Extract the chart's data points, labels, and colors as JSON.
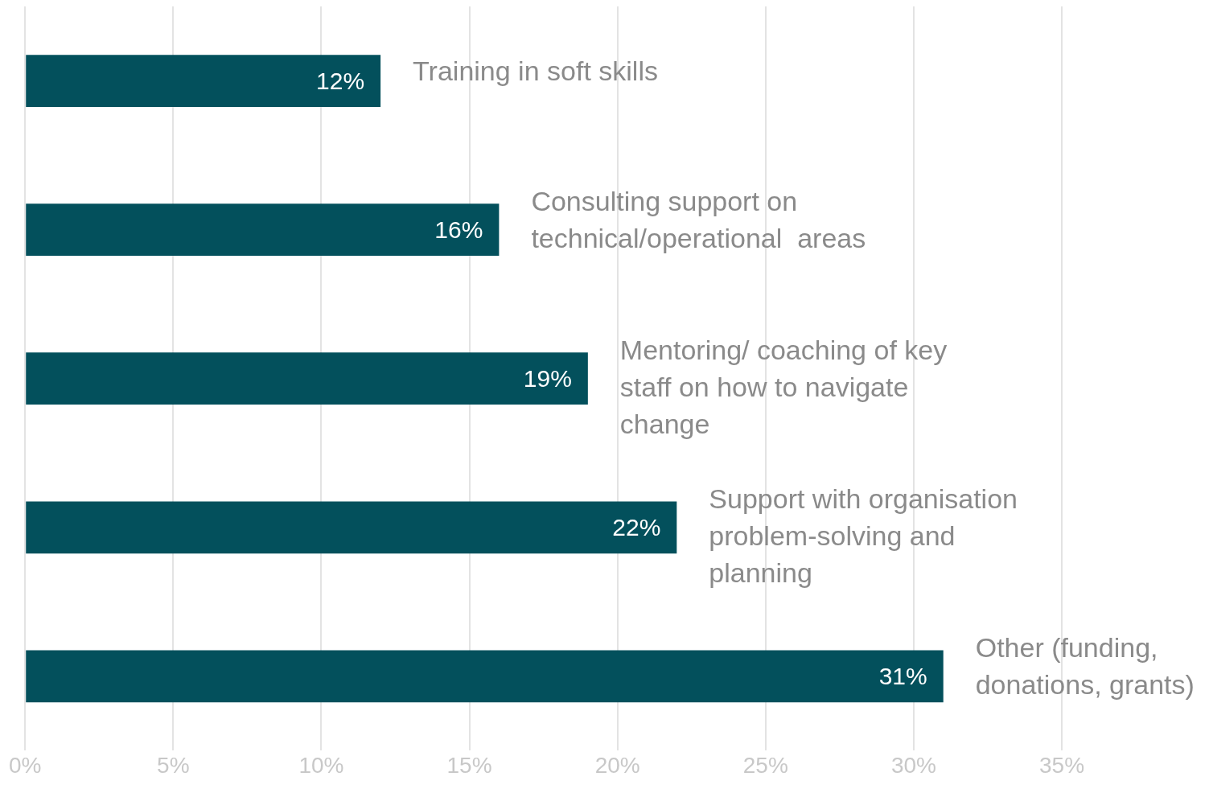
{
  "chart_data": {
    "type": "bar",
    "orientation": "horizontal",
    "categories": [
      "Training in soft skills",
      "Consulting support on technical/operational  areas",
      "Mentoring/ coaching of key staff on how to navigate change",
      "Support with organisation problem-solving and planning",
      "Other (funding, donations, grants)"
    ],
    "values": [
      12,
      16,
      19,
      22,
      31
    ],
    "value_labels": [
      "12%",
      "16%",
      "19%",
      "22%",
      "31%"
    ],
    "color": "#03505c",
    "grid": "x",
    "legend": false,
    "xlim": [
      0,
      35
    ],
    "xticks": [
      {
        "value": 0,
        "label": "0%"
      },
      {
        "value": 5,
        "label": "5%"
      },
      {
        "value": 10,
        "label": "10%"
      },
      {
        "value": 15,
        "label": "15%"
      },
      {
        "value": 20,
        "label": "20%"
      },
      {
        "value": 25,
        "label": "25%"
      },
      {
        "value": 30,
        "label": "30%"
      },
      {
        "value": 35,
        "label": "35%"
      }
    ]
  }
}
